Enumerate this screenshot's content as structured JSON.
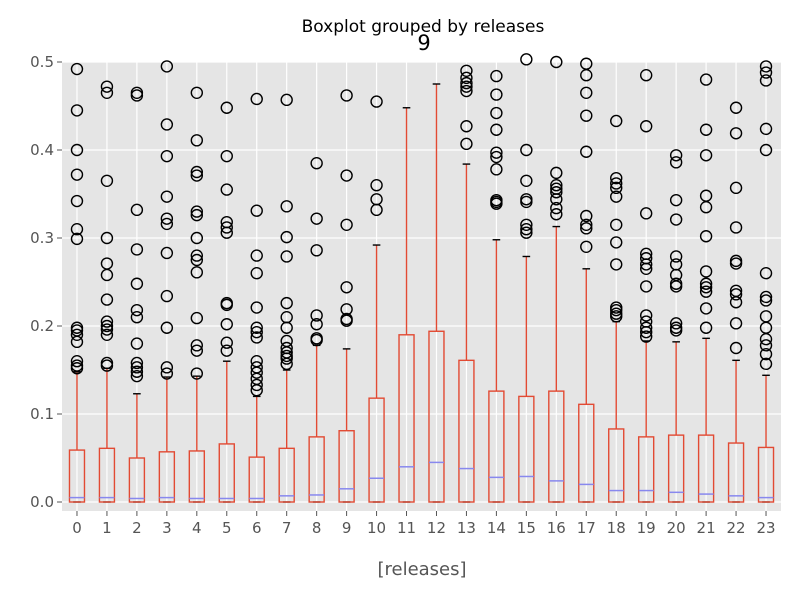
{
  "chart_data": {
    "type": "boxplot",
    "suptitle": "Boxplot grouped by releases",
    "title": "9",
    "xlabel": "[releases]",
    "ylabel": "",
    "ylim": [
      0,
      0.5
    ],
    "yticks": [
      "0.0",
      "0.1",
      "0.2",
      "0.3",
      "0.4",
      "0.5"
    ],
    "categories": [
      "0",
      "1",
      "2",
      "3",
      "4",
      "5",
      "6",
      "7",
      "8",
      "9",
      "10",
      "11",
      "12",
      "13",
      "14",
      "15",
      "16",
      "17",
      "18",
      "19",
      "20",
      "21",
      "22",
      "23"
    ],
    "colors": {
      "background": "#e5e5e5",
      "grid": "#ffffff",
      "box": "#e24a33",
      "median": "#8eba42",
      "median_line": "#8888ee",
      "flier": "#000000"
    },
    "grid": true,
    "boxes": [
      {
        "whislo": 0,
        "q1": 0,
        "med": 0.005,
        "q3": 0.059,
        "whishi": 0.148,
        "fliers": [
          0.492,
          0.445,
          0.4,
          0.372,
          0.342,
          0.31,
          0.299,
          0.198,
          0.195,
          0.19,
          0.182,
          0.16,
          0.155,
          0.152
        ]
      },
      {
        "whislo": 0,
        "q1": 0,
        "med": 0.005,
        "q3": 0.061,
        "whishi": 0.152,
        "fliers": [
          0.472,
          0.465,
          0.365,
          0.3,
          0.271,
          0.258,
          0.23,
          0.205,
          0.2,
          0.196,
          0.19,
          0.158,
          0.155
        ]
      },
      {
        "whislo": 0,
        "q1": 0,
        "med": 0.004,
        "q3": 0.05,
        "whishi": 0.123,
        "fliers": [
          0.465,
          0.462,
          0.332,
          0.287,
          0.248,
          0.218,
          0.21,
          0.18,
          0.158,
          0.153,
          0.148,
          0.143
        ]
      },
      {
        "whislo": 0,
        "q1": 0,
        "med": 0.005,
        "q3": 0.057,
        "whishi": 0.142,
        "fliers": [
          0.495,
          0.429,
          0.393,
          0.347,
          0.322,
          0.316,
          0.283,
          0.234,
          0.198,
          0.153,
          0.146
        ]
      },
      {
        "whislo": 0,
        "q1": 0,
        "med": 0.004,
        "q3": 0.058,
        "whishi": 0.143,
        "fliers": [
          0.465,
          0.411,
          0.375,
          0.371,
          0.33,
          0.326,
          0.3,
          0.28,
          0.275,
          0.261,
          0.209,
          0.178,
          0.172,
          0.146
        ]
      },
      {
        "whislo": 0,
        "q1": 0,
        "med": 0.004,
        "q3": 0.066,
        "whishi": 0.16,
        "fliers": [
          0.448,
          0.393,
          0.355,
          0.318,
          0.312,
          0.306,
          0.226,
          0.224,
          0.202,
          0.181,
          0.172
        ]
      },
      {
        "whislo": 0,
        "q1": 0,
        "med": 0.004,
        "q3": 0.051,
        "whishi": 0.12,
        "fliers": [
          0.458,
          0.331,
          0.28,
          0.26,
          0.221,
          0.198,
          0.193,
          0.187,
          0.16,
          0.153,
          0.147,
          0.14,
          0.133,
          0.127
        ]
      },
      {
        "whislo": 0,
        "q1": 0,
        "med": 0.007,
        "q3": 0.061,
        "whishi": 0.15,
        "fliers": [
          0.457,
          0.336,
          0.301,
          0.279,
          0.226,
          0.21,
          0.198,
          0.183,
          0.175,
          0.17,
          0.166,
          0.163,
          0.157
        ]
      },
      {
        "whislo": 0,
        "q1": 0,
        "med": 0.008,
        "q3": 0.074,
        "whishi": 0.178,
        "fliers": [
          0.385,
          0.322,
          0.286,
          0.212,
          0.202,
          0.186,
          0.184
        ]
      },
      {
        "whislo": 0,
        "q1": 0,
        "med": 0.015,
        "q3": 0.081,
        "whishi": 0.174,
        "fliers": [
          0.462,
          0.371,
          0.315,
          0.244,
          0.219,
          0.208,
          0.206
        ]
      },
      {
        "whislo": 0,
        "q1": 0,
        "med": 0.027,
        "q3": 0.118,
        "whishi": 0.292,
        "fliers": [
          0.455,
          0.36,
          0.344,
          0.332
        ]
      },
      {
        "whislo": 0,
        "q1": 0,
        "med": 0.04,
        "q3": 0.19,
        "whishi": 0.448,
        "fliers": []
      },
      {
        "whislo": 0,
        "q1": 0,
        "med": 0.045,
        "q3": 0.194,
        "whishi": 0.475,
        "fliers": []
      },
      {
        "whislo": 0,
        "q1": 0,
        "med": 0.038,
        "q3": 0.161,
        "whishi": 0.384,
        "fliers": [
          0.49,
          0.482,
          0.476,
          0.472,
          0.467,
          0.427,
          0.407
        ]
      },
      {
        "whislo": 0,
        "q1": 0,
        "med": 0.028,
        "q3": 0.126,
        "whishi": 0.298,
        "fliers": [
          0.484,
          0.463,
          0.442,
          0.423,
          0.397,
          0.392,
          0.378,
          0.343,
          0.341,
          0.339
        ]
      },
      {
        "whislo": 0,
        "q1": 0,
        "med": 0.029,
        "q3": 0.12,
        "whishi": 0.279,
        "fliers": [
          0.503,
          0.4,
          0.365,
          0.344,
          0.341,
          0.315,
          0.31,
          0.306
        ]
      },
      {
        "whislo": 0,
        "q1": 0,
        "med": 0.024,
        "q3": 0.126,
        "whishi": 0.313,
        "fliers": [
          0.5,
          0.374,
          0.36,
          0.356,
          0.352,
          0.344,
          0.334,
          0.327
        ]
      },
      {
        "whislo": 0,
        "q1": 0,
        "med": 0.02,
        "q3": 0.111,
        "whishi": 0.265,
        "fliers": [
          0.498,
          0.485,
          0.465,
          0.439,
          0.398,
          0.325,
          0.315,
          0.311,
          0.29
        ]
      },
      {
        "whislo": 0,
        "q1": 0,
        "med": 0.013,
        "q3": 0.083,
        "whishi": 0.205,
        "fliers": [
          0.433,
          0.368,
          0.362,
          0.357,
          0.347,
          0.315,
          0.295,
          0.27,
          0.221,
          0.218,
          0.214,
          0.211
        ]
      },
      {
        "whislo": 0,
        "q1": 0,
        "med": 0.013,
        "q3": 0.074,
        "whishi": 0.183,
        "fliers": [
          0.485,
          0.427,
          0.328,
          0.282,
          0.277,
          0.27,
          0.265,
          0.245,
          0.212,
          0.205,
          0.198,
          0.193,
          0.188
        ]
      },
      {
        "whislo": 0,
        "q1": 0,
        "med": 0.011,
        "q3": 0.076,
        "whishi": 0.182,
        "fliers": [
          0.394,
          0.386,
          0.343,
          0.321,
          0.279,
          0.27,
          0.258,
          0.248,
          0.245,
          0.203,
          0.198,
          0.195
        ]
      },
      {
        "whislo": 0,
        "q1": 0,
        "med": 0.009,
        "q3": 0.076,
        "whishi": 0.186,
        "fliers": [
          0.48,
          0.423,
          0.394,
          0.348,
          0.335,
          0.302,
          0.262,
          0.248,
          0.244,
          0.239,
          0.22,
          0.198
        ]
      },
      {
        "whislo": 0,
        "q1": 0,
        "med": 0.007,
        "q3": 0.067,
        "whishi": 0.161,
        "fliers": [
          0.448,
          0.419,
          0.357,
          0.312,
          0.274,
          0.271,
          0.24,
          0.236,
          0.227,
          0.203,
          0.175
        ]
      },
      {
        "whislo": 0,
        "q1": 0,
        "med": 0.005,
        "q3": 0.062,
        "whishi": 0.144,
        "fliers": [
          0.495,
          0.488,
          0.479,
          0.424,
          0.4,
          0.26,
          0.233,
          0.229,
          0.211,
          0.198,
          0.185,
          0.178,
          0.168,
          0.157
        ]
      }
    ]
  }
}
